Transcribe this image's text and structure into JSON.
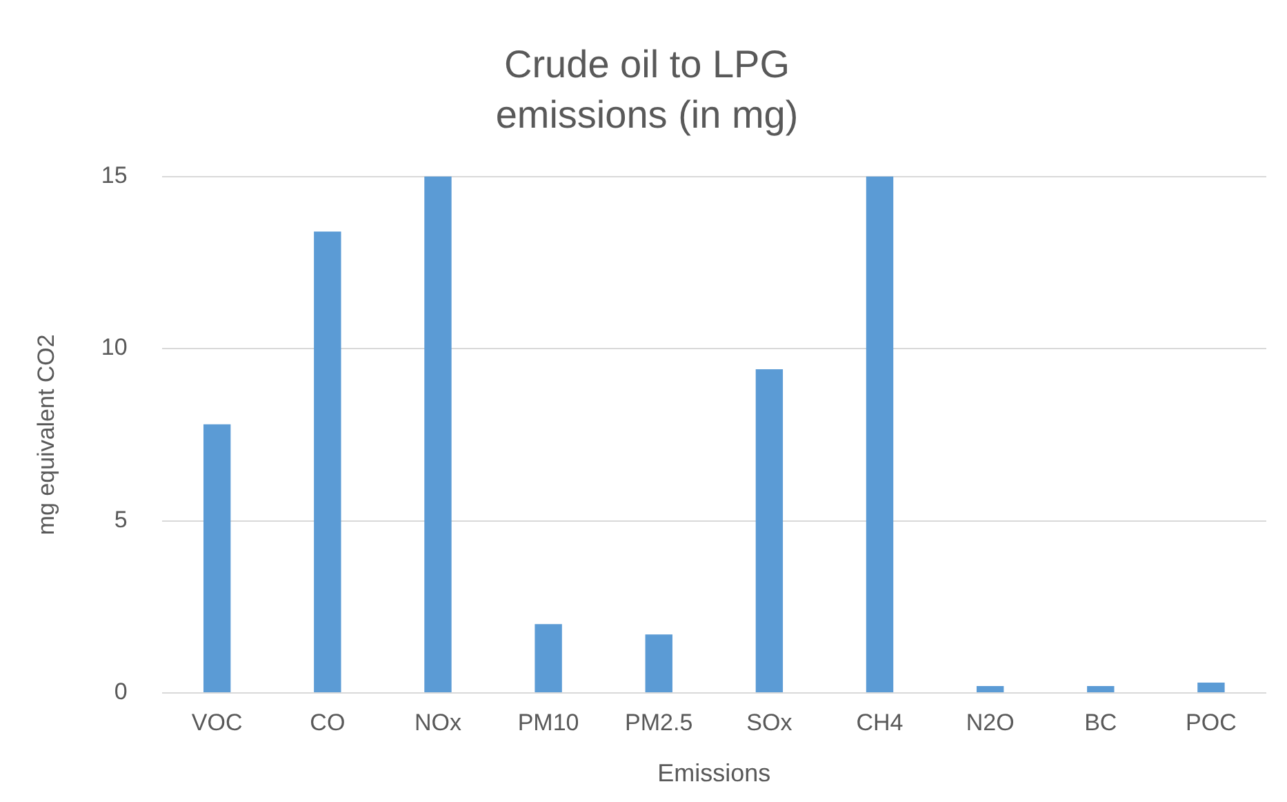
{
  "chart_data": {
    "type": "bar",
    "title": "Crude oil to LPG emissions (in mg)",
    "xlabel": "Emissions",
    "ylabel": "mg equivalent CO2",
    "categories": [
      "VOC",
      "CO",
      "NOx",
      "PM10",
      "PM2.5",
      "SOx",
      "CH4",
      "N2O",
      "BC",
      "POC"
    ],
    "values": [
      7.8,
      13.4,
      15,
      2.0,
      1.7,
      9.4,
      15,
      0.2,
      0.2,
      0.3
    ],
    "color": "#5b9bd5",
    "ylim": [
      0,
      15
    ],
    "yticks": [
      0,
      5,
      10,
      15
    ],
    "grid": "y",
    "legend": false
  }
}
